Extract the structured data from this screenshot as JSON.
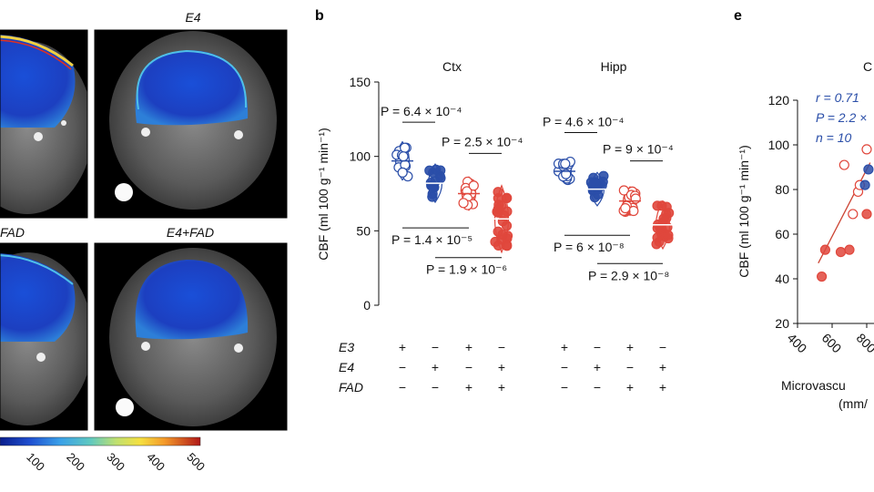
{
  "panels": {
    "b_label": "b",
    "e_label": "e"
  },
  "mri": {
    "labels": [
      "E4",
      "FAD",
      "E4+FAD"
    ],
    "colorbar_ticks": [
      "100",
      "200",
      "300",
      "400",
      "500"
    ]
  },
  "colors": {
    "e3": "#2a4ea8",
    "fad": "#e0473c",
    "line": "#cc4433"
  },
  "chart_data": [
    {
      "type": "scatter",
      "panel": "b",
      "ylabel": "CBF (ml 100 g⁻¹ min⁻¹)",
      "ylim": [
        0,
        150
      ],
      "yticks": [
        0,
        50,
        100,
        150
      ],
      "groups": [
        {
          "title": "Ctx",
          "mean_values": [
            97,
            82,
            75,
            58
          ],
          "comparisons": [
            {
              "p": "P = 6.4 × 10⁻⁴",
              "from": 0,
              "to": 1,
              "position": "above"
            },
            {
              "p": "P = 2.5 × 10⁻⁴",
              "from": 2,
              "to": 3,
              "position": "above"
            },
            {
              "p": "P = 1.4 × 10⁻⁵",
              "from": 0,
              "to": 2,
              "position": "below"
            },
            {
              "p": "P = 1.9 × 10⁻⁶",
              "from": 1,
              "to": 3,
              "position": "below"
            }
          ]
        },
        {
          "title": "Hipp",
          "mean_values": [
            90,
            78,
            70,
            54
          ],
          "comparisons": [
            {
              "p": "P = 4.6 × 10⁻⁴",
              "from": 0,
              "to": 1,
              "position": "above"
            },
            {
              "p": "P = 9 × 10⁻⁴",
              "from": 2,
              "to": 3,
              "position": "above"
            },
            {
              "p": "P = 6 × 10⁻⁸",
              "from": 0,
              "to": 2,
              "position": "below"
            },
            {
              "p": "P = 2.9 × 10⁻⁸",
              "from": 1,
              "to": 3,
              "position": "below"
            }
          ]
        }
      ],
      "genotype_rows": [
        {
          "name": "E3",
          "marks": [
            "+",
            "−",
            "+",
            "−"
          ]
        },
        {
          "name": "E4",
          "marks": [
            "−",
            "+",
            "−",
            "+"
          ]
        },
        {
          "name": "FAD",
          "marks": [
            "−",
            "−",
            "+",
            "+"
          ]
        }
      ]
    },
    {
      "type": "scatter",
      "panel": "e",
      "title": "C",
      "ylabel": "CBF (ml 100 g⁻¹ min⁻¹)",
      "xlabel": [
        "Microvascu",
        "(mm/"
      ],
      "ylim": [
        20,
        120
      ],
      "yticks": [
        20,
        40,
        60,
        80,
        100,
        120
      ],
      "xticks": [
        "400",
        "600",
        "800"
      ],
      "stats": [
        "r = 0.71",
        "P = 2.2 ×",
        "n = 10"
      ],
      "points": [
        {
          "x": 540,
          "y": 41,
          "group": "fad",
          "filled": true
        },
        {
          "x": 560,
          "y": 53,
          "group": "fad",
          "filled": true
        },
        {
          "x": 650,
          "y": 52,
          "group": "fad",
          "filled": true
        },
        {
          "x": 700,
          "y": 53,
          "group": "fad",
          "filled": true
        },
        {
          "x": 720,
          "y": 69,
          "group": "fad",
          "filled": false
        },
        {
          "x": 750,
          "y": 79,
          "group": "fad",
          "filled": false
        },
        {
          "x": 760,
          "y": 82,
          "group": "fad",
          "filled": false
        },
        {
          "x": 800,
          "y": 69,
          "group": "fad",
          "filled": true
        },
        {
          "x": 670,
          "y": 91,
          "group": "fad",
          "filled": false
        },
        {
          "x": 800,
          "y": 98,
          "group": "fad",
          "filled": false
        },
        {
          "x": 790,
          "y": 82,
          "group": "e3",
          "filled": true
        },
        {
          "x": 810,
          "y": 89,
          "group": "e3",
          "filled": true
        }
      ],
      "fit": {
        "x": [
          520,
          820
        ],
        "y": [
          47,
          92
        ]
      }
    }
  ]
}
